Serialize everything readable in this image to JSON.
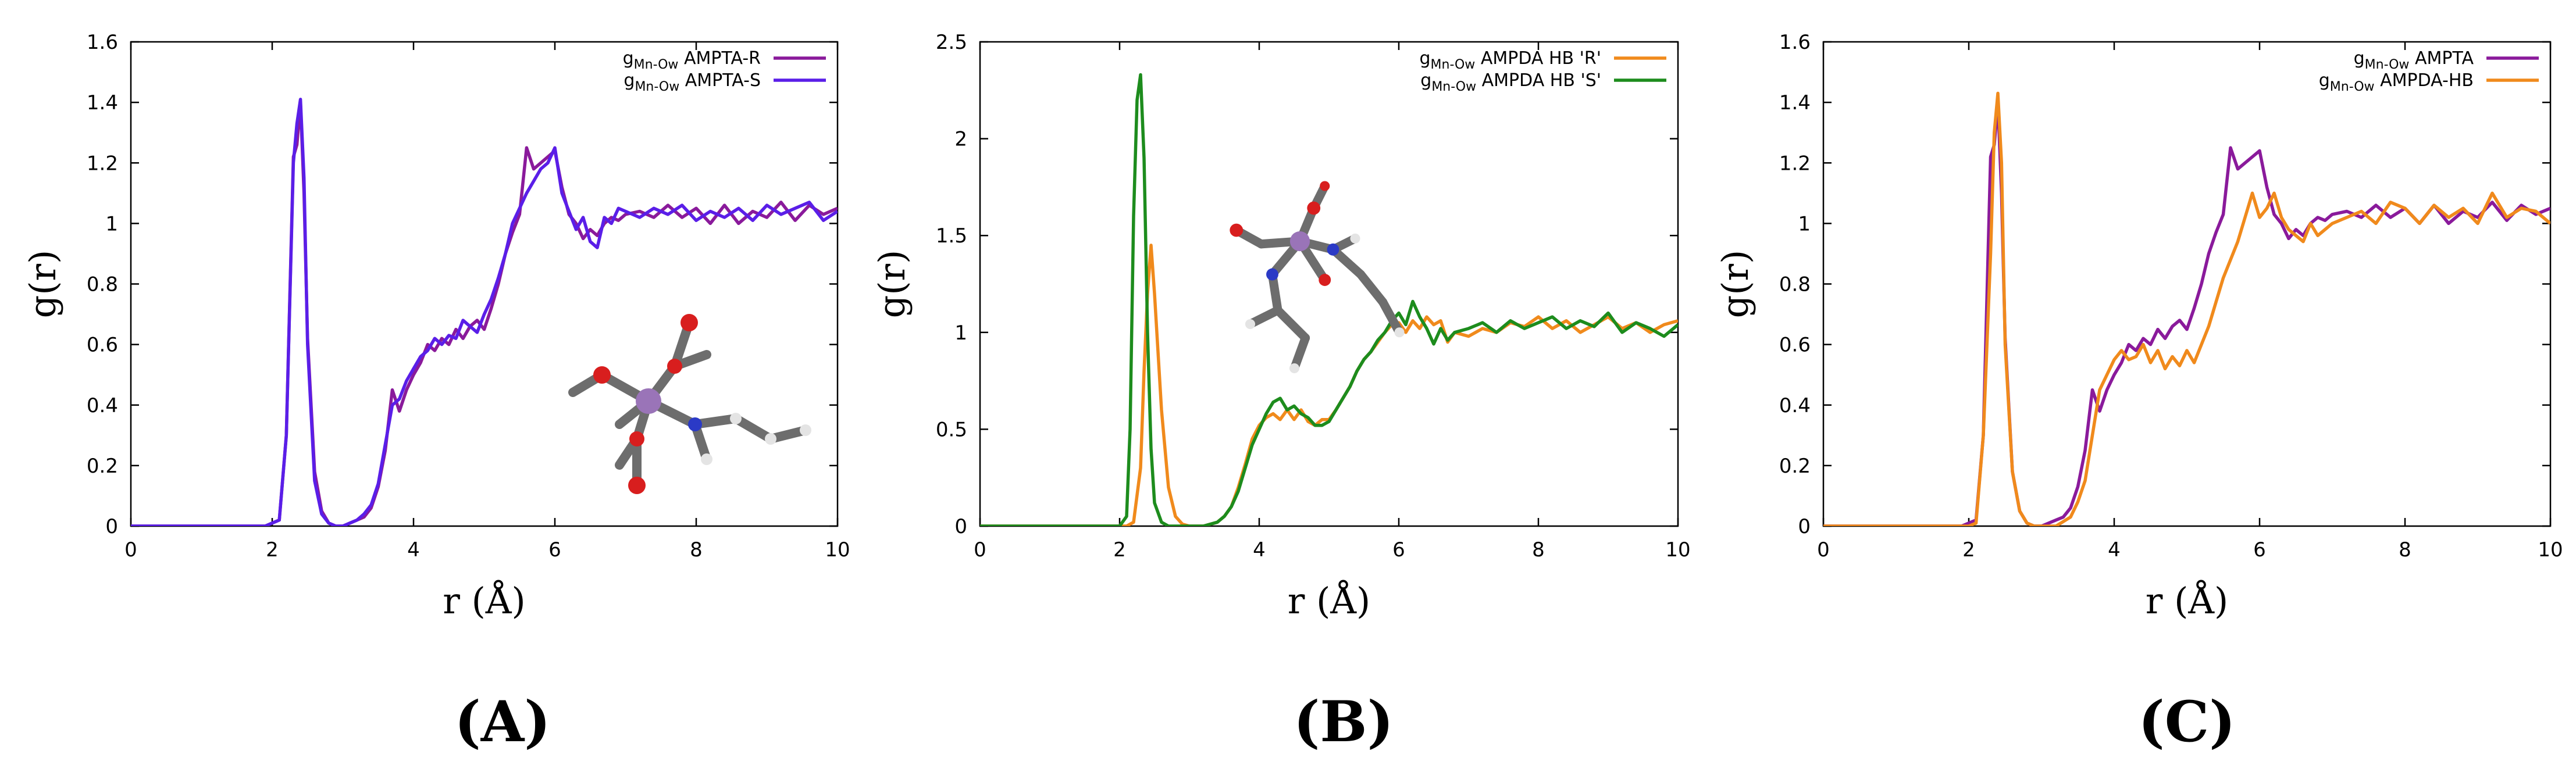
{
  "chart_data": [
    {
      "type": "line",
      "panel_label": "(A)",
      "xlabel": "r (Å)",
      "ylabel": "g(r)",
      "xlim": [
        0,
        10
      ],
      "ylim": [
        0,
        1.6
      ],
      "xticks": [
        "0",
        "2",
        "4",
        "6",
        "8",
        "10"
      ],
      "yticks": [
        "0",
        "0.2",
        "0.4",
        "0.6",
        "0.8",
        "1",
        "1.2",
        "1.4",
        "1.6"
      ],
      "legend_position": "top-right",
      "inset": "molecular structure of Mn complex (AMPTA)",
      "series": [
        {
          "name": "AMPTA-R",
          "label_prefix": "g",
          "label_sub": "Mn-Ow",
          "color": "#8a1a9b",
          "x": [
            0,
            1.9,
            2.0,
            2.1,
            2.2,
            2.3,
            2.35,
            2.4,
            2.45,
            2.5,
            2.6,
            2.7,
            2.8,
            2.9,
            3.0,
            3.1,
            3.2,
            3.3,
            3.4,
            3.5,
            3.6,
            3.7,
            3.8,
            3.9,
            4.0,
            4.1,
            4.2,
            4.3,
            4.4,
            4.5,
            4.6,
            4.7,
            4.8,
            4.9,
            5.0,
            5.1,
            5.2,
            5.3,
            5.4,
            5.5,
            5.6,
            5.7,
            5.8,
            5.9,
            6.0,
            6.1,
            6.2,
            6.3,
            6.4,
            6.5,
            6.6,
            6.7,
            6.8,
            6.9,
            7.0,
            7.2,
            7.4,
            7.6,
            7.8,
            8.0,
            8.2,
            8.4,
            8.6,
            8.8,
            9.0,
            9.2,
            9.4,
            9.6,
            9.8,
            10.0
          ],
          "y": [
            0,
            0,
            0.01,
            0.02,
            0.3,
            1.22,
            1.26,
            1.4,
            1.1,
            0.62,
            0.18,
            0.05,
            0.01,
            0.0,
            0.0,
            0.01,
            0.02,
            0.03,
            0.06,
            0.13,
            0.25,
            0.45,
            0.38,
            0.45,
            0.5,
            0.54,
            0.6,
            0.58,
            0.62,
            0.6,
            0.65,
            0.62,
            0.66,
            0.68,
            0.65,
            0.72,
            0.8,
            0.9,
            0.97,
            1.03,
            1.25,
            1.18,
            1.2,
            1.22,
            1.24,
            1.12,
            1.03,
            1.0,
            0.95,
            0.98,
            0.96,
            1.0,
            1.02,
            1.01,
            1.03,
            1.04,
            1.02,
            1.06,
            1.02,
            1.05,
            1.0,
            1.06,
            1.0,
            1.04,
            1.02,
            1.07,
            1.01,
            1.06,
            1.03,
            1.05
          ]
        },
        {
          "name": "AMPTA-S",
          "label_prefix": "g",
          "label_sub": "Mn-Ow",
          "color": "#5a1ee8",
          "x": [
            0,
            1.9,
            2.0,
            2.1,
            2.2,
            2.3,
            2.35,
            2.4,
            2.45,
            2.5,
            2.6,
            2.7,
            2.8,
            2.9,
            3.0,
            3.1,
            3.2,
            3.3,
            3.4,
            3.5,
            3.6,
            3.7,
            3.8,
            3.9,
            4.0,
            4.1,
            4.2,
            4.3,
            4.4,
            4.5,
            4.6,
            4.7,
            4.8,
            4.9,
            5.0,
            5.1,
            5.2,
            5.3,
            5.4,
            5.5,
            5.6,
            5.7,
            5.8,
            5.9,
            6.0,
            6.1,
            6.2,
            6.3,
            6.4,
            6.5,
            6.6,
            6.7,
            6.8,
            6.9,
            7.0,
            7.2,
            7.4,
            7.6,
            7.8,
            8.0,
            8.2,
            8.4,
            8.6,
            8.8,
            9.0,
            9.2,
            9.4,
            9.6,
            9.8,
            10.0
          ],
          "y": [
            0,
            0,
            0.01,
            0.02,
            0.3,
            1.2,
            1.33,
            1.41,
            1.15,
            0.6,
            0.15,
            0.04,
            0.01,
            0.0,
            0.0,
            0.01,
            0.02,
            0.04,
            0.07,
            0.14,
            0.27,
            0.4,
            0.42,
            0.48,
            0.52,
            0.56,
            0.58,
            0.62,
            0.6,
            0.63,
            0.62,
            0.68,
            0.66,
            0.64,
            0.7,
            0.75,
            0.82,
            0.9,
            1.0,
            1.05,
            1.1,
            1.14,
            1.18,
            1.2,
            1.25,
            1.1,
            1.04,
            0.98,
            1.02,
            0.94,
            0.92,
            1.02,
            1.0,
            1.05,
            1.04,
            1.02,
            1.05,
            1.03,
            1.06,
            1.01,
            1.04,
            1.02,
            1.05,
            1.01,
            1.06,
            1.03,
            1.05,
            1.07,
            1.01,
            1.04
          ]
        }
      ]
    },
    {
      "type": "line",
      "panel_label": "(B)",
      "xlabel": "r (Å)",
      "ylabel": "g(r)",
      "xlim": [
        0,
        10
      ],
      "ylim": [
        0,
        2.5
      ],
      "xticks": [
        "0",
        "2",
        "4",
        "6",
        "8",
        "10"
      ],
      "yticks": [
        "0",
        "0.5",
        "1",
        "1.5",
        "2",
        "2.5"
      ],
      "legend_position": "top-right",
      "inset": "molecular structure of Mn complex (AMPDA HB)",
      "series": [
        {
          "name": "AMPDA HB 'R'",
          "label_prefix": "g",
          "label_sub": "Mn-Ow",
          "color": "#f08a1c",
          "x": [
            0,
            2.0,
            2.1,
            2.2,
            2.3,
            2.35,
            2.4,
            2.45,
            2.5,
            2.6,
            2.7,
            2.8,
            2.9,
            3.0,
            3.2,
            3.4,
            3.5,
            3.6,
            3.7,
            3.8,
            3.9,
            4.0,
            4.1,
            4.2,
            4.3,
            4.4,
            4.5,
            4.6,
            4.7,
            4.8,
            4.9,
            5.0,
            5.1,
            5.2,
            5.3,
            5.4,
            5.5,
            5.6,
            5.7,
            5.8,
            5.9,
            6.0,
            6.1,
            6.2,
            6.3,
            6.4,
            6.5,
            6.6,
            6.7,
            6.8,
            7.0,
            7.2,
            7.4,
            7.6,
            7.8,
            8.0,
            8.2,
            8.4,
            8.6,
            8.8,
            9.0,
            9.2,
            9.4,
            9.6,
            9.8,
            10.0
          ],
          "y": [
            0,
            0,
            0.0,
            0.02,
            0.3,
            0.8,
            1.2,
            1.45,
            1.2,
            0.6,
            0.2,
            0.05,
            0.01,
            0.0,
            0.0,
            0.02,
            0.05,
            0.1,
            0.2,
            0.32,
            0.45,
            0.52,
            0.56,
            0.58,
            0.55,
            0.6,
            0.55,
            0.6,
            0.54,
            0.52,
            0.55,
            0.55,
            0.6,
            0.66,
            0.72,
            0.8,
            0.86,
            0.9,
            0.95,
            1.0,
            1.04,
            1.05,
            1.0,
            1.06,
            1.02,
            1.08,
            1.04,
            1.06,
            0.95,
            1.0,
            0.98,
            1.02,
            1.0,
            1.05,
            1.03,
            1.08,
            1.02,
            1.06,
            1.0,
            1.04,
            1.08,
            1.02,
            1.05,
            1.0,
            1.04,
            1.06
          ]
        },
        {
          "name": "AMPDA HB 'S'",
          "label_prefix": "g",
          "label_sub": "Mn-Ow",
          "color": "#1d8c1d",
          "x": [
            0,
            2.0,
            2.1,
            2.15,
            2.2,
            2.25,
            2.3,
            2.35,
            2.4,
            2.45,
            2.5,
            2.6,
            2.7,
            2.8,
            2.9,
            3.0,
            3.2,
            3.4,
            3.5,
            3.6,
            3.7,
            3.8,
            3.9,
            4.0,
            4.1,
            4.2,
            4.3,
            4.4,
            4.5,
            4.6,
            4.7,
            4.8,
            4.9,
            5.0,
            5.1,
            5.2,
            5.3,
            5.4,
            5.5,
            5.6,
            5.7,
            5.8,
            5.9,
            6.0,
            6.1,
            6.2,
            6.3,
            6.4,
            6.5,
            6.6,
            6.7,
            6.8,
            7.0,
            7.2,
            7.4,
            7.6,
            7.8,
            8.0,
            8.2,
            8.4,
            8.6,
            8.8,
            9.0,
            9.2,
            9.4,
            9.6,
            9.8,
            10.0
          ],
          "y": [
            0,
            0,
            0.05,
            0.5,
            1.6,
            2.2,
            2.33,
            1.9,
            1.0,
            0.4,
            0.12,
            0.02,
            0.0,
            0.0,
            0.0,
            0.0,
            0.0,
            0.02,
            0.05,
            0.1,
            0.18,
            0.3,
            0.42,
            0.5,
            0.58,
            0.64,
            0.66,
            0.6,
            0.62,
            0.58,
            0.56,
            0.52,
            0.52,
            0.54,
            0.6,
            0.66,
            0.72,
            0.8,
            0.86,
            0.9,
            0.96,
            1.0,
            1.06,
            1.1,
            1.04,
            1.16,
            1.08,
            1.02,
            0.94,
            1.02,
            0.96,
            1.0,
            1.02,
            1.05,
            1.0,
            1.06,
            1.02,
            1.05,
            1.08,
            1.02,
            1.06,
            1.03,
            1.1,
            1.0,
            1.05,
            1.02,
            0.98,
            1.04
          ]
        }
      ]
    },
    {
      "type": "line",
      "panel_label": "(C)",
      "xlabel": "r (Å)",
      "ylabel": "g(r)",
      "xlim": [
        0,
        10
      ],
      "ylim": [
        0,
        1.6
      ],
      "xticks": [
        "0",
        "2",
        "4",
        "6",
        "8",
        "10"
      ],
      "yticks": [
        "0",
        "0.2",
        "0.4",
        "0.6",
        "0.8",
        "1",
        "1.2",
        "1.4",
        "1.6"
      ],
      "legend_position": "top-right",
      "series": [
        {
          "name": "AMPTA",
          "label_prefix": "g",
          "label_sub": "Mn-Ow",
          "color": "#8a1a9b",
          "x": [
            0,
            1.9,
            2.0,
            2.1,
            2.2,
            2.3,
            2.35,
            2.4,
            2.45,
            2.5,
            2.6,
            2.7,
            2.8,
            2.9,
            3.0,
            3.1,
            3.2,
            3.3,
            3.4,
            3.5,
            3.6,
            3.7,
            3.8,
            3.9,
            4.0,
            4.1,
            4.2,
            4.3,
            4.4,
            4.5,
            4.6,
            4.7,
            4.8,
            4.9,
            5.0,
            5.1,
            5.2,
            5.3,
            5.4,
            5.5,
            5.6,
            5.7,
            5.8,
            5.9,
            6.0,
            6.1,
            6.2,
            6.3,
            6.4,
            6.5,
            6.6,
            6.7,
            6.8,
            6.9,
            7.0,
            7.2,
            7.4,
            7.6,
            7.8,
            8.0,
            8.2,
            8.4,
            8.6,
            8.8,
            9.0,
            9.2,
            9.4,
            9.6,
            9.8,
            10.0
          ],
          "y": [
            0,
            0,
            0.01,
            0.02,
            0.3,
            1.22,
            1.26,
            1.4,
            1.1,
            0.62,
            0.18,
            0.05,
            0.01,
            0.0,
            0.0,
            0.01,
            0.02,
            0.03,
            0.06,
            0.13,
            0.25,
            0.45,
            0.38,
            0.45,
            0.5,
            0.54,
            0.6,
            0.58,
            0.62,
            0.6,
            0.65,
            0.62,
            0.66,
            0.68,
            0.65,
            0.72,
            0.8,
            0.9,
            0.97,
            1.03,
            1.25,
            1.18,
            1.2,
            1.22,
            1.24,
            1.12,
            1.03,
            1.0,
            0.95,
            0.98,
            0.96,
            1.0,
            1.02,
            1.01,
            1.03,
            1.04,
            1.02,
            1.06,
            1.02,
            1.05,
            1.0,
            1.06,
            1.0,
            1.04,
            1.02,
            1.07,
            1.01,
            1.06,
            1.03,
            1.05
          ]
        },
        {
          "name": "AMPDA-HB",
          "label_prefix": "g",
          "label_sub": "Mn-Ow",
          "color": "#f08a1c",
          "x": [
            0,
            2.0,
            2.1,
            2.2,
            2.3,
            2.35,
            2.4,
            2.45,
            2.5,
            2.6,
            2.7,
            2.8,
            2.9,
            3.0,
            3.2,
            3.4,
            3.5,
            3.6,
            3.7,
            3.8,
            3.9,
            4.0,
            4.1,
            4.2,
            4.3,
            4.4,
            4.5,
            4.6,
            4.7,
            4.8,
            4.9,
            5.0,
            5.1,
            5.2,
            5.3,
            5.4,
            5.5,
            5.6,
            5.7,
            5.8,
            5.9,
            6.0,
            6.1,
            6.2,
            6.3,
            6.4,
            6.5,
            6.6,
            6.7,
            6.8,
            7.0,
            7.2,
            7.4,
            7.6,
            7.8,
            8.0,
            8.2,
            8.4,
            8.6,
            8.8,
            9.0,
            9.2,
            9.4,
            9.6,
            9.8,
            10.0
          ],
          "y": [
            0,
            0,
            0.01,
            0.3,
            0.9,
            1.3,
            1.43,
            1.2,
            0.6,
            0.18,
            0.05,
            0.01,
            0.0,
            0.0,
            0.0,
            0.03,
            0.08,
            0.15,
            0.3,
            0.45,
            0.5,
            0.55,
            0.58,
            0.55,
            0.56,
            0.6,
            0.54,
            0.58,
            0.52,
            0.56,
            0.53,
            0.58,
            0.54,
            0.6,
            0.66,
            0.74,
            0.82,
            0.88,
            0.94,
            1.02,
            1.1,
            1.02,
            1.05,
            1.1,
            1.02,
            0.98,
            0.96,
            0.94,
            1.0,
            0.96,
            1.0,
            1.02,
            1.04,
            1.0,
            1.07,
            1.05,
            1.0,
            1.06,
            1.02,
            1.05,
            1.0,
            1.1,
            1.02,
            1.05,
            1.04,
            1.0
          ]
        }
      ]
    }
  ]
}
